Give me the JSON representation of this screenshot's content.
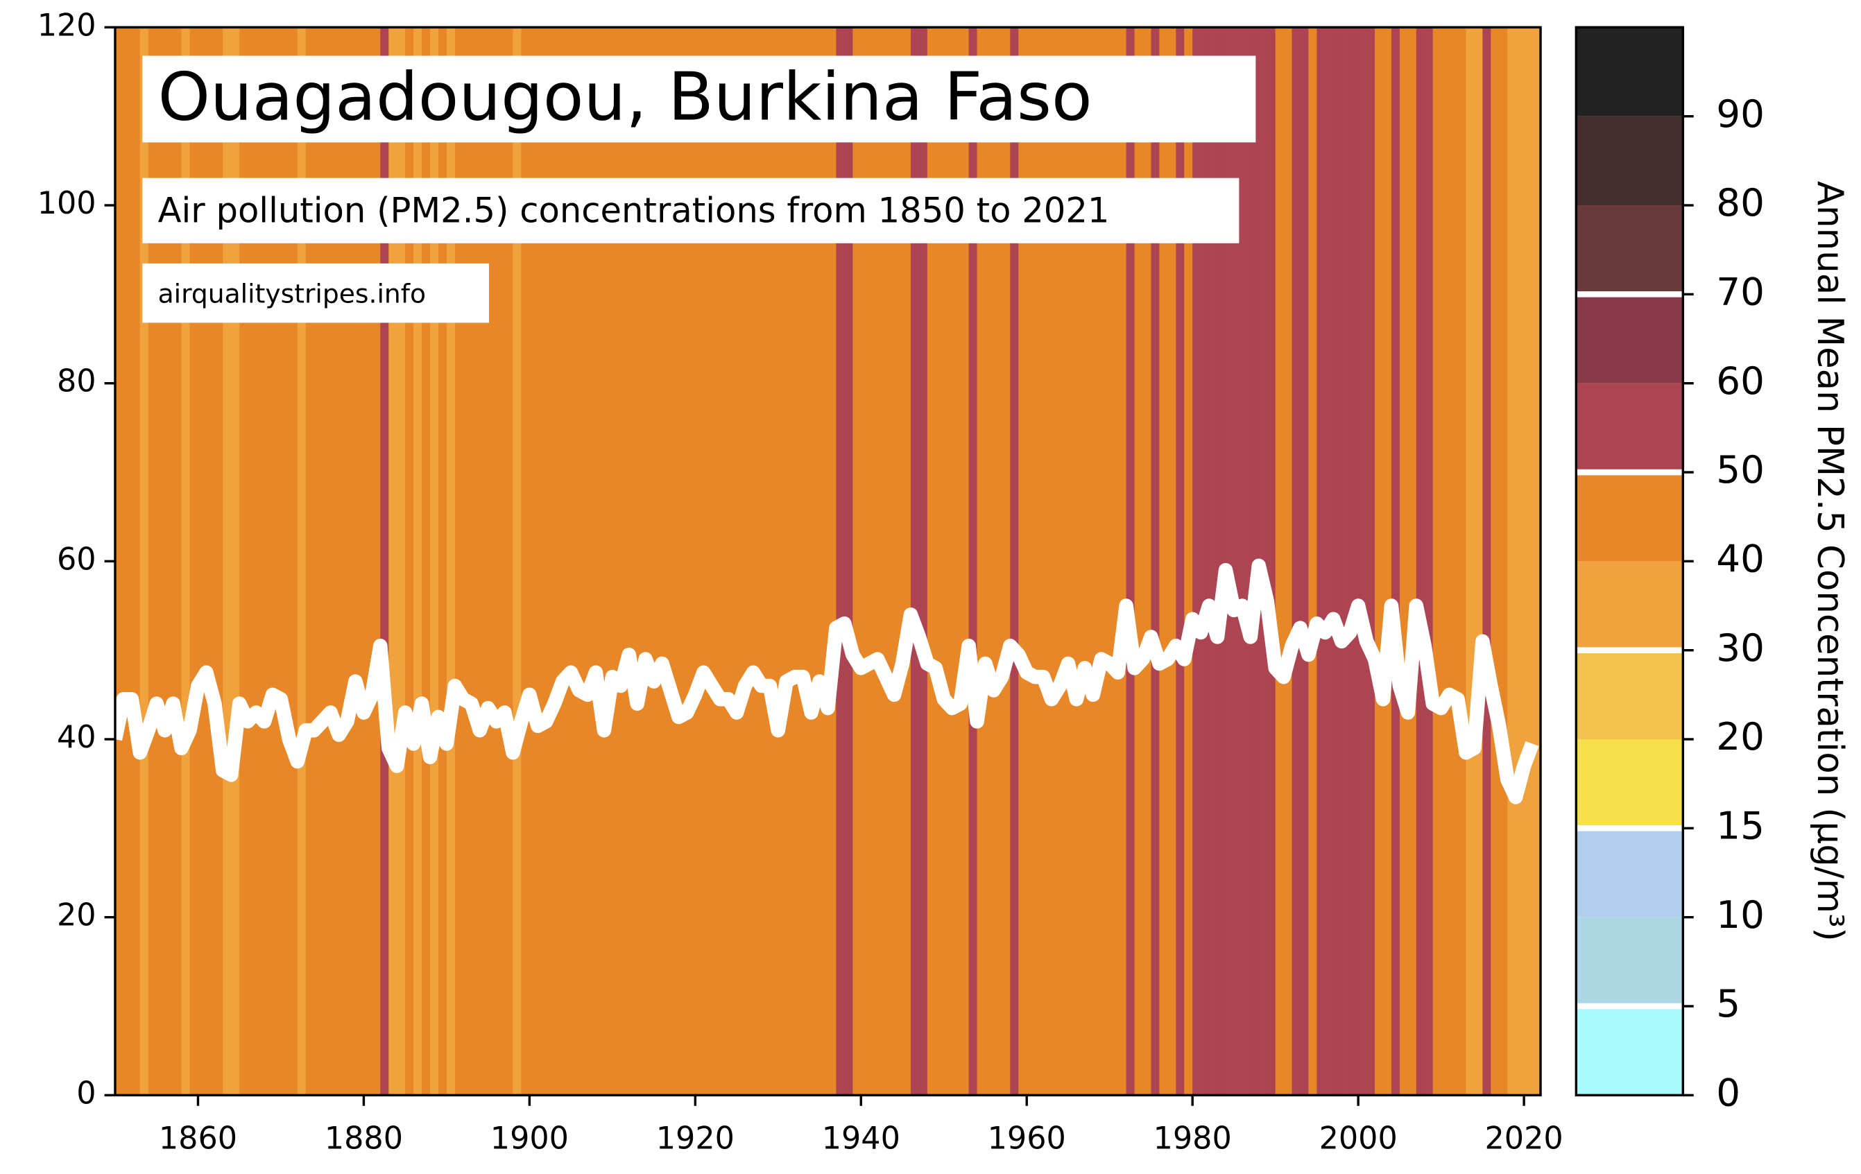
{
  "chart_data": {
    "type": "stripes_line",
    "title": "Ouagadougou, Burkina Faso",
    "subtitle": "Air pollution (PM2.5) concentrations from 1850 to 2021",
    "source": "airqualitystripes.info",
    "line_color": "#ffffff",
    "x": [
      1850,
      1851,
      1852,
      1853,
      1854,
      1855,
      1856,
      1857,
      1858,
      1859,
      1860,
      1861,
      1862,
      1863,
      1864,
      1865,
      1866,
      1867,
      1868,
      1869,
      1870,
      1871,
      1872,
      1873,
      1874,
      1875,
      1876,
      1877,
      1878,
      1879,
      1880,
      1881,
      1882,
      1883,
      1884,
      1885,
      1886,
      1887,
      1888,
      1889,
      1890,
      1891,
      1892,
      1893,
      1894,
      1895,
      1896,
      1897,
      1898,
      1899,
      1900,
      1901,
      1902,
      1903,
      1904,
      1905,
      1906,
      1907,
      1908,
      1909,
      1910,
      1911,
      1912,
      1913,
      1914,
      1915,
      1916,
      1917,
      1918,
      1919,
      1920,
      1921,
      1922,
      1923,
      1924,
      1925,
      1926,
      1927,
      1928,
      1929,
      1930,
      1931,
      1932,
      1933,
      1934,
      1935,
      1936,
      1937,
      1938,
      1939,
      1940,
      1941,
      1942,
      1943,
      1944,
      1945,
      1946,
      1947,
      1948,
      1949,
      1950,
      1951,
      1952,
      1953,
      1954,
      1955,
      1956,
      1957,
      1958,
      1959,
      1960,
      1961,
      1962,
      1963,
      1964,
      1965,
      1966,
      1967,
      1968,
      1969,
      1970,
      1971,
      1972,
      1973,
      1974,
      1975,
      1976,
      1977,
      1978,
      1979,
      1980,
      1981,
      1982,
      1983,
      1984,
      1985,
      1986,
      1987,
      1988,
      1989,
      1990,
      1991,
      1992,
      1993,
      1994,
      1995,
      1996,
      1997,
      1998,
      1999,
      2000,
      2001,
      2002,
      2003,
      2004,
      2005,
      2006,
      2007,
      2008,
      2009,
      2010,
      2011,
      2012,
      2013,
      2014,
      2015,
      2016,
      2017,
      2018,
      2019,
      2020,
      2021
    ],
    "values": [
      40,
      44.5,
      44.5,
      38.5,
      41,
      44,
      41,
      44,
      39,
      41,
      46,
      47.5,
      44,
      36.5,
      36,
      44,
      42,
      43,
      42,
      45,
      44.5,
      40,
      37.5,
      41,
      41,
      42,
      43,
      40.5,
      42,
      46.5,
      43,
      45,
      50.5,
      39,
      37,
      43,
      39.5,
      44,
      38,
      42.5,
      39.5,
      46,
      44.5,
      44,
      41,
      43.5,
      42,
      43,
      38.5,
      42,
      45,
      41.5,
      42,
      44,
      46.5,
      47.5,
      45.5,
      45,
      47.5,
      41,
      47,
      46,
      49.5,
      44,
      49,
      46.5,
      48.5,
      45.5,
      42.5,
      43,
      45,
      47.5,
      46,
      44.5,
      44.5,
      43,
      46,
      47.5,
      46,
      46,
      41,
      46.5,
      47,
      47,
      43,
      46.5,
      43.5,
      52.5,
      53,
      49.5,
      48,
      48.5,
      49,
      47,
      45,
      48.5,
      54,
      51.5,
      48.5,
      48,
      44.5,
      43.5,
      44,
      50.5,
      42,
      48.5,
      45.5,
      47,
      50.5,
      49.5,
      47.5,
      47,
      47,
      44.5,
      46,
      48.5,
      44.5,
      48,
      45,
      49,
      48.5,
      47.5,
      55,
      48,
      49,
      51.5,
      48.5,
      49,
      50.5,
      49,
      53.5,
      52,
      55,
      51.5,
      59,
      54.5,
      55,
      51.5,
      59.5,
      55.5,
      48,
      47,
      50.5,
      52.5,
      49.5,
      53,
      52,
      53.5,
      51,
      52,
      55,
      51,
      49,
      44.5,
      55,
      46,
      43,
      55,
      50.5,
      44,
      43.5,
      45,
      44.5,
      38.5,
      39,
      51,
      46,
      41.5,
      35.5,
      33.5,
      37,
      39.5
    ],
    "xlim": [
      1850,
      2022
    ],
    "ylim": [
      0,
      120
    ],
    "xticks": [
      1860,
      1880,
      1900,
      1920,
      1940,
      1960,
      1980,
      2000,
      2020
    ],
    "yticks": [
      0,
      20,
      40,
      60,
      80,
      100,
      120
    ],
    "colorbar": {
      "label": "Annual Mean PM2.5 Concentration (μg/m³)",
      "bounds": [
        0,
        5,
        10,
        15,
        20,
        30,
        40,
        50,
        60,
        70,
        80,
        90,
        100
      ],
      "colors": [
        "#a6fafc",
        "#acd8e6",
        "#b1cfec",
        "#f7e04a",
        "#f2c24c",
        "#f0a23e",
        "#e88727",
        "#ac4451",
        "#873947",
        "#673a3c",
        "#462d30",
        "#222222"
      ],
      "ticks": [
        0,
        5,
        10,
        15,
        20,
        30,
        40,
        50,
        60,
        70,
        80,
        90
      ],
      "lines": [
        5,
        15,
        30,
        50,
        70
      ]
    }
  }
}
